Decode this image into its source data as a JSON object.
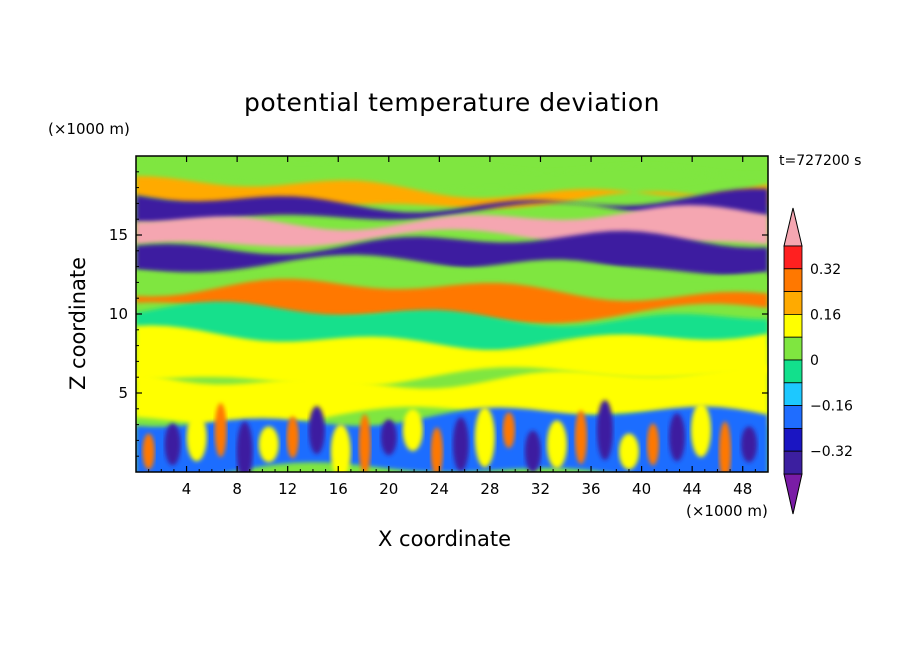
{
  "chart_data": {
    "type": "heatmap",
    "title": "potential temperature deviation",
    "xlabel": "X coordinate",
    "ylabel": "Z coordinate",
    "x_multiplier": "(×1000 m)",
    "y_multiplier": "(×1000 m)",
    "time_label": "t=727200 s",
    "xlim": [
      0,
      50
    ],
    "ylim": [
      0,
      20
    ],
    "x_ticks": [
      4,
      8,
      12,
      16,
      20,
      24,
      28,
      32,
      36,
      40,
      44,
      48
    ],
    "y_ticks": [
      5,
      10,
      15
    ],
    "colorbar": {
      "levels": [
        -0.48,
        -0.4,
        -0.32,
        -0.24,
        -0.16,
        -0.08,
        0,
        0.08,
        0.16,
        0.24,
        0.32,
        0.4
      ],
      "tick_labels": [
        "0.32",
        "0.16",
        "0",
        "−0.16",
        "−0.32"
      ],
      "tick_values": [
        0.32,
        0.16,
        0,
        -0.16,
        -0.32
      ],
      "colors": [
        "#7a1ca6",
        "#3c1fa0",
        "#1a15c2",
        "#1f6dff",
        "#1dc8ff",
        "#12e08c",
        "#7fe640",
        "#ffff00",
        "#ffaa00",
        "#ff7800",
        "#ff2020",
        "#f5a6b1"
      ],
      "extend": "both"
    },
    "field_bands": [
      {
        "z": [
          18.0,
          19.5
        ],
        "value": 0.05
      },
      {
        "z": [
          17.0,
          18.0
        ],
        "value": 0.2
      },
      {
        "z": [
          16.3,
          17.2
        ],
        "value": -0.35
      },
      {
        "z": [
          14.6,
          16.1
        ],
        "value": 0.42
      },
      {
        "z": [
          13.0,
          14.5
        ],
        "value": -0.4
      },
      {
        "z": [
          11.0,
          12.8
        ],
        "value": 0.0
      },
      {
        "z": [
          10.0,
          11.5
        ],
        "value": 0.28
      },
      {
        "z": [
          8.0,
          10.0
        ],
        "value": -0.05
      },
      {
        "z": [
          6.0,
          8.5
        ],
        "value": 0.1
      },
      {
        "z": [
          3.5,
          6.0
        ],
        "value": 0.12
      },
      {
        "z": [
          0.0,
          3.5
        ],
        "value": -0.2
      }
    ]
  }
}
